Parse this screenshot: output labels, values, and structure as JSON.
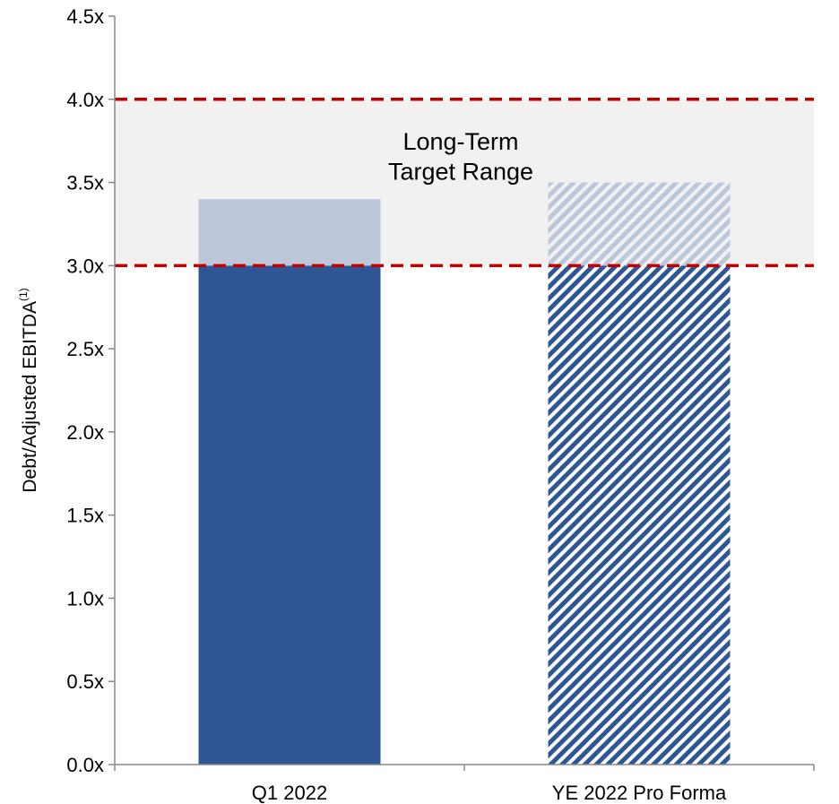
{
  "chart_data": {
    "type": "bar",
    "categories": [
      "Q1 2022",
      "YE 2022 Pro Forma"
    ],
    "values": [
      3.4,
      3.5
    ],
    "ylabel": "Debt/Adjusted EBITDA",
    "ylabel_superscript": "(1)",
    "ylim": [
      0,
      4.5
    ],
    "yticks": [
      "0.0x",
      "0.5x",
      "1.0x",
      "1.5x",
      "2.0x",
      "2.5x",
      "3.0x",
      "3.5x",
      "4.0x",
      "4.5x"
    ],
    "target_range": {
      "low": 3.0,
      "high": 4.0,
      "label_line1": "Long-Term",
      "label_line2": "Target Range"
    },
    "bar_styles": [
      "solid",
      "hatched"
    ],
    "grid": false,
    "legend": "none",
    "colors": {
      "bar": "#2e5594",
      "bar_in_range": "#bcc7da",
      "band": "#f1f1f1",
      "target_line": "#c00000",
      "axis": "#888888"
    }
  }
}
